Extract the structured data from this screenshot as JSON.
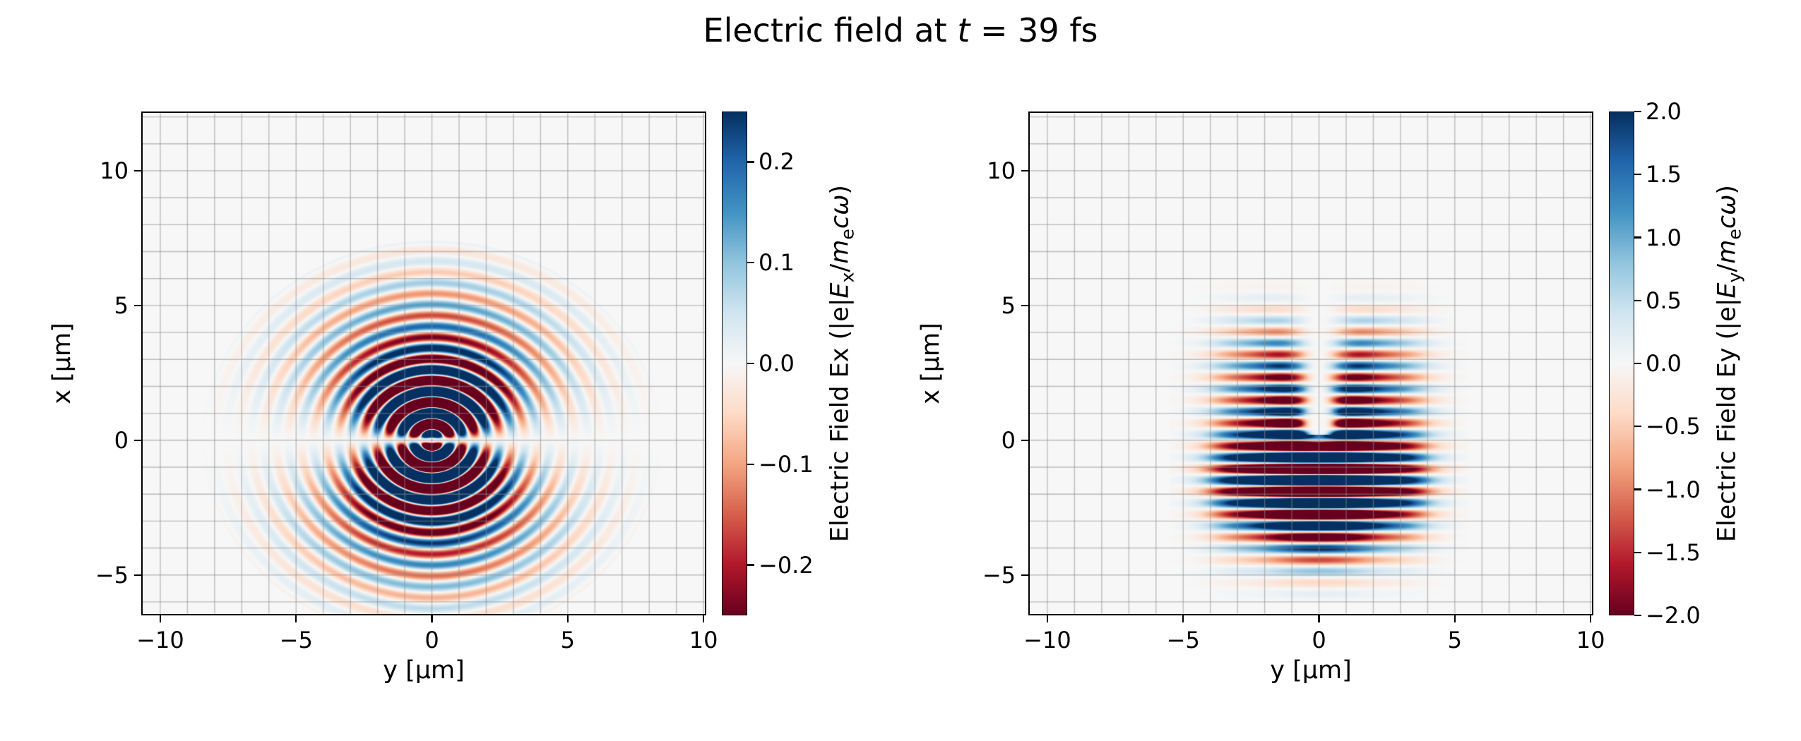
{
  "figure": {
    "title": "Electric field at t = 39 fs",
    "title_segments": [
      [
        "t",
        "Electric field at "
      ],
      [
        "i",
        "t"
      ],
      [
        "t",
        " = 39 fs"
      ]
    ],
    "background": "#ffffff"
  },
  "colormap": {
    "name": "RdBu",
    "stops": [
      [
        0.0,
        "#67001f"
      ],
      [
        0.1,
        "#b2182b"
      ],
      [
        0.2,
        "#d6604d"
      ],
      [
        0.3,
        "#f4a582"
      ],
      [
        0.4,
        "#fddbc7"
      ],
      [
        0.5,
        "#f7f7f7"
      ],
      [
        0.6,
        "#d1e5f0"
      ],
      [
        0.7,
        "#92c5de"
      ],
      [
        0.8,
        "#4393c3"
      ],
      [
        0.9,
        "#2166ac"
      ],
      [
        1.0,
        "#053061"
      ]
    ]
  },
  "chart_data": [
    {
      "type": "heatmap",
      "name": "Ex",
      "xlabel": "y [μm]",
      "ylabel": "x [μm]",
      "xlim": [
        -10.7,
        10.1
      ],
      "ylim": [
        -6.5,
        12.2
      ],
      "xticks": {
        "values": [
          -10,
          -5,
          0,
          5,
          10
        ],
        "labels": [
          "−10",
          "−5",
          "0",
          "5",
          "10"
        ]
      },
      "yticks": {
        "values": [
          -5,
          0,
          5,
          10
        ],
        "labels": [
          "−5",
          "0",
          "5",
          "10"
        ]
      },
      "grid": {
        "show": true,
        "spacing": 1,
        "color": "#8c8c8c"
      },
      "colorbar": {
        "label": "Electric Field Ex (|e|Ex/mecω)",
        "label_segments": [
          [
            "t",
            "Electric Field Ex (|e|"
          ],
          [
            "i",
            "E"
          ],
          [
            "s",
            "x"
          ],
          [
            "t",
            "/"
          ],
          [
            "i",
            "m"
          ],
          [
            "s",
            "e"
          ],
          [
            "i",
            "c"
          ],
          [
            "i",
            "ω"
          ],
          [
            "t",
            ")"
          ]
        ],
        "vmin": -0.25,
        "vmax": 0.25,
        "ticks": {
          "values": [
            0.2,
            0.1,
            0.0,
            -0.1,
            -0.2
          ],
          "labels": [
            "0.2",
            "0.1",
            "0.0",
            "−0.1",
            "−0.2"
          ]
        }
      },
      "field": {
        "pattern": "dipole_rings",
        "description": "Concentric interference rings of alternating sign centered at (y=0, x=0), blue above axis / red below, saturated core within r<3 μm, fading by r≈6.5 μm, thin white slit along x=0 near center",
        "wavelength_um": 0.85,
        "radius_um": 6.2,
        "amplitude": 0.6,
        "center_x": 0,
        "center_y": 0
      }
    },
    {
      "type": "heatmap",
      "name": "Ey",
      "xlabel": "y [μm]",
      "ylabel": "x [μm]",
      "xlim": [
        -10.7,
        10.1
      ],
      "ylim": [
        -6.5,
        12.2
      ],
      "xticks": {
        "values": [
          -10,
          -5,
          0,
          5,
          10
        ],
        "labels": [
          "−10",
          "−5",
          "0",
          "5",
          "10"
        ]
      },
      "yticks": {
        "values": [
          -5,
          0,
          5,
          10
        ],
        "labels": [
          "−5",
          "0",
          "5",
          "10"
        ]
      },
      "grid": {
        "show": true,
        "spacing": 1,
        "color": "#8c8c8c"
      },
      "colorbar": {
        "label": "Electric Field Ey (|e|Ey/mecω)",
        "label_segments": [
          [
            "t",
            "Electric Field Ey (|e|"
          ],
          [
            "i",
            "E"
          ],
          [
            "s",
            "y"
          ],
          [
            "t",
            "/"
          ],
          [
            "i",
            "m"
          ],
          [
            "s",
            "e"
          ],
          [
            "i",
            "c"
          ],
          [
            "i",
            "ω"
          ],
          [
            "t",
            ")"
          ]
        ],
        "vmin": -2.0,
        "vmax": 2.0,
        "ticks": {
          "values": [
            2.0,
            1.5,
            1.0,
            0.5,
            0.0,
            -0.5,
            -1.0,
            -1.5,
            -2.0
          ],
          "labels": [
            "2.0",
            "1.5",
            "1.0",
            "0.5",
            "0.0",
            "−0.5",
            "−1.0",
            "−1.5",
            "−2.0"
          ]
        }
      },
      "field": {
        "pattern": "stripes",
        "description": "Horizontal bands alternating sign stacked along x within |y|<4 μm and −5<x<5 μm, strongly saturated core below center, upper lobes split by a widening V-shaped gap around y=0, pale notch near (x≈0.5, y≈0)",
        "wavelength_um": 0.85,
        "amplitude": 4.0,
        "envelope_y_um": 2.4,
        "extent_x_um": 4.3
      }
    }
  ]
}
